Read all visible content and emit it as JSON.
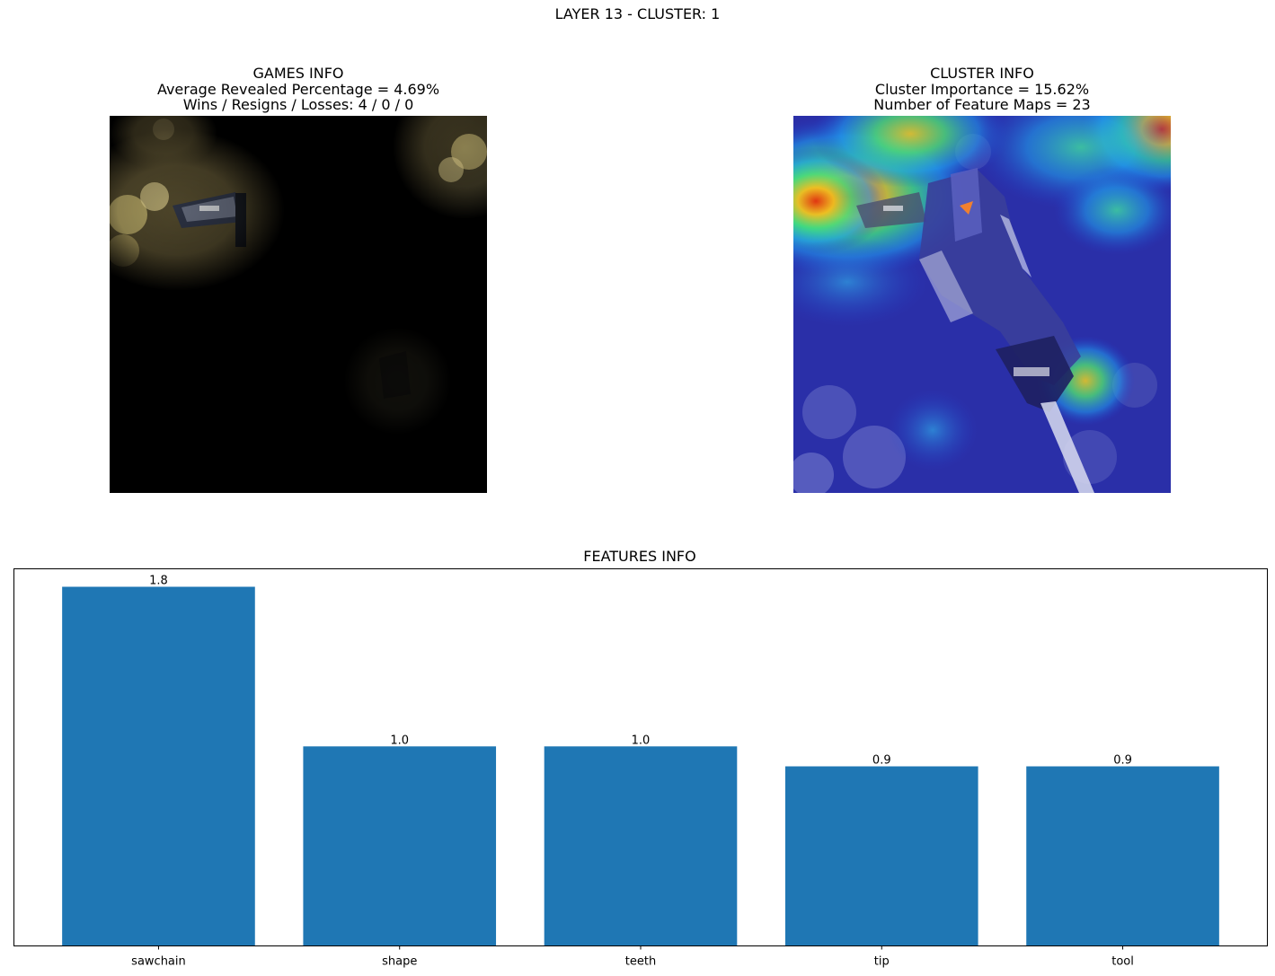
{
  "figure": {
    "suptitle": "LAYER 13 - CLUSTER: 1"
  },
  "games_panel": {
    "title": "GAMES INFO",
    "line1": "Average Revealed Percentage = 4.69%",
    "line2": "Wins / Resigns / Losses: 4 / 0 / 0"
  },
  "cluster_panel": {
    "title": "CLUSTER INFO",
    "line1": "Cluster Importance = 15.62%",
    "line2": "Number of Feature Maps = 23"
  },
  "features_panel": {
    "title": "FEATURES INFO"
  },
  "colors": {
    "bar": "#1f77b4",
    "mask": "#000000",
    "heatmap_base": "#1c2a9e"
  },
  "chart_data": {
    "type": "bar",
    "title": "FEATURES INFO",
    "categories": [
      "sawchain",
      "shape",
      "teeth",
      "tip",
      "tool"
    ],
    "values": [
      1.8,
      1.0,
      1.0,
      0.9,
      0.9
    ],
    "value_labels": [
      "1.8",
      "1.0",
      "1.0",
      "0.9",
      "0.9"
    ],
    "xlabel": "",
    "ylabel": "",
    "ylim": [
      0,
      1.89
    ],
    "y_ticks_visible": false,
    "grid": false,
    "legend": "none"
  }
}
